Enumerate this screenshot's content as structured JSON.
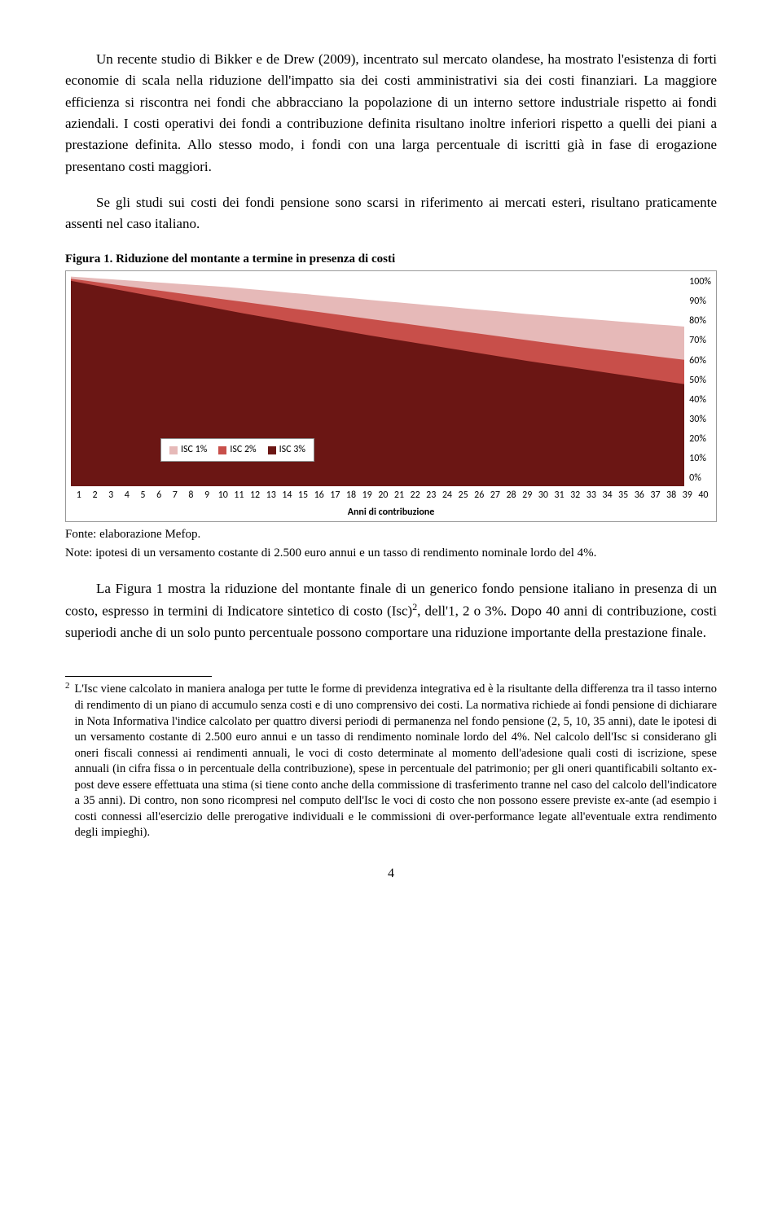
{
  "paragraphs": {
    "p1": "Un recente studio di Bikker e de Drew (2009), incentrato sul mercato olandese, ha mostrato l'esistenza di forti economie di scala nella riduzione dell'impatto sia dei costi amministrativi sia dei costi finanziari. La maggiore efficienza si riscontra nei fondi che abbracciano la popolazione di un interno settore industriale rispetto ai fondi aziendali. I costi operativi dei fondi a contribuzione definita risultano inoltre inferiori rispetto a quelli dei piani a prestazione definita. Allo stesso modo, i fondi con una larga percentuale di iscritti già in fase di erogazione presentano costi maggiori.",
    "p2": "Se gli studi sui costi dei fondi pensione sono scarsi in riferimento ai mercati esteri, risultano praticamente assenti nel caso italiano.",
    "p3_a": "La Figura 1 mostra la riduzione del montante finale di un generico fondo pensione italiano in presenza di un costo, espresso in termini di Indicatore sintetico di costo (Isc)",
    "p3_sup": "2",
    "p3_b": ", dell'1, 2 o 3%. Dopo 40 anni di contribuzione, costi superiodi anche di un solo punto percentuale possono comportare una riduzione importante della prestazione finale."
  },
  "figure": {
    "caption": "Figura 1. Riduzione del montante a termine in presenza di costi",
    "source": "Fonte: elaborazione Mefop.",
    "note": "Note: ipotesi di un versamento costante di 2.500 euro annui e un tasso di rendimento nominale lordo del 4%.",
    "x_title": "Anni di contribuzione",
    "y_ticks": [
      "100%",
      "90%",
      "80%",
      "70%",
      "60%",
      "50%",
      "40%",
      "30%",
      "20%",
      "10%",
      "0%"
    ],
    "x_ticks": [
      "1",
      "2",
      "3",
      "4",
      "5",
      "6",
      "7",
      "8",
      "9",
      "10",
      "11",
      "12",
      "13",
      "14",
      "15",
      "16",
      "17",
      "18",
      "19",
      "20",
      "21",
      "22",
      "23",
      "24",
      "25",
      "26",
      "27",
      "28",
      "29",
      "30",
      "31",
      "32",
      "33",
      "34",
      "35",
      "36",
      "37",
      "38",
      "39",
      "40"
    ],
    "legend": [
      {
        "label": "ISC 1%",
        "color": "#e6b9b8"
      },
      {
        "label": "ISC 2%",
        "color": "#c84f4a"
      },
      {
        "label": "ISC 3%",
        "color": "#6b1614"
      }
    ],
    "chart": {
      "type": "area",
      "background_color": "#ffffff",
      "xlim": [
        1,
        40
      ],
      "ylim": [
        0,
        100
      ],
      "series": [
        {
          "name": "ISC 1%",
          "color": "#e6b9b8",
          "values": [
            99,
            98.5,
            98,
            97.5,
            97,
            96.5,
            96,
            95.5,
            95,
            94.5,
            94,
            93.3,
            92.7,
            92,
            91.3,
            90.7,
            90,
            89.3,
            88.7,
            88,
            87.3,
            86.7,
            86,
            85.3,
            84.7,
            84,
            83.3,
            82.7,
            82,
            81.3,
            80.7,
            80.1,
            79.5,
            78.9,
            78.3,
            77.7,
            77.1,
            76.5,
            76,
            75.4
          ]
        },
        {
          "name": "ISC 2%",
          "color": "#c84f4a",
          "values": [
            98,
            97,
            96,
            95,
            94,
            93,
            92,
            91,
            90,
            89,
            88,
            87,
            86,
            85,
            84,
            83,
            82,
            81,
            80,
            79,
            78,
            77,
            76,
            75,
            74,
            73,
            72,
            71,
            70,
            69,
            68,
            67,
            66,
            65.1,
            64.2,
            63.3,
            62.4,
            61.5,
            60.6,
            59.7
          ]
        },
        {
          "name": "ISC 3%",
          "color": "#6b1614",
          "values": [
            97,
            95.6,
            94.2,
            92.8,
            91.4,
            90,
            88.6,
            87.2,
            85.8,
            84.4,
            83,
            81.6,
            80.3,
            79,
            77.7,
            76.4,
            75.1,
            73.8,
            72.5,
            71.2,
            70,
            68.8,
            67.6,
            66.4,
            65.2,
            64,
            62.8,
            61.6,
            60.4,
            59.2,
            58.1,
            57,
            55.9,
            54.8,
            53.7,
            52.6,
            51.5,
            50.4,
            49.3,
            48.2
          ]
        }
      ]
    }
  },
  "footnote": {
    "marker": "2",
    "text": "L'Isc viene calcolato in maniera analoga per tutte le forme di previdenza integrativa ed è la risultante della differenza tra il tasso interno di rendimento di un piano di accumulo senza costi e di uno comprensivo dei costi. La normativa richiede ai fondi pensione di dichiarare in Nota Informativa l'indice calcolato per quattro diversi periodi di permanenza nel fondo pensione (2, 5, 10, 35 anni), date le ipotesi di un versamento costante di 2.500 euro annui e un tasso di rendimento nominale lordo del 4%. Nel calcolo dell'Isc si considerano gli oneri fiscali connessi ai rendimenti annuali, le voci di costo determinate al momento dell'adesione quali costi di iscrizione, spese annuali (in cifra fissa o in percentuale della contribuzione), spese in percentuale del patrimonio; per gli oneri quantificabili soltanto ex-post deve essere effettuata una stima (si tiene conto anche della commissione di trasferimento tranne nel caso del calcolo dell'indicatore a 35 anni). Di contro, non sono ricompresi nel computo dell'Isc le voci di costo che non possono essere previste ex-ante (ad esempio i costi connessi all'esercizio delle prerogative individuali e le commissioni di over-performance legate all'eventuale extra rendimento degli impieghi)."
  },
  "page_number": "4"
}
